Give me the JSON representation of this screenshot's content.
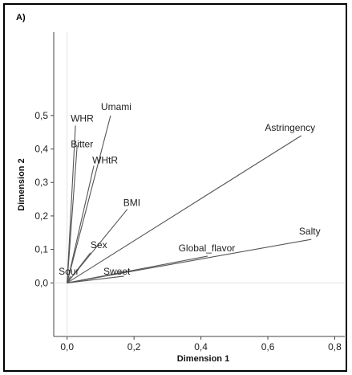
{
  "panel_label": "A)",
  "chart_data": {
    "type": "biplot-vectors",
    "xlabel": "Dimension 1",
    "ylabel": "Dimension 2",
    "xlim": [
      -0.04,
      0.83
    ],
    "ylim": [
      -0.16,
      0.55
    ],
    "xticks": [
      {
        "value": 0.0,
        "label": "0,0"
      },
      {
        "value": 0.2,
        "label": "0,2"
      },
      {
        "value": 0.4,
        "label": "0,4"
      },
      {
        "value": 0.6,
        "label": "0,6"
      },
      {
        "value": 0.8,
        "label": "0,8"
      }
    ],
    "yticks": [
      {
        "value": 0.0,
        "label": "0,0"
      },
      {
        "value": 0.1,
        "label": "0,1"
      },
      {
        "value": 0.2,
        "label": "0,2"
      },
      {
        "value": 0.3,
        "label": "0,3"
      },
      {
        "value": 0.4,
        "label": "0,4"
      },
      {
        "value": 0.5,
        "label": "0,5"
      }
    ],
    "vectors": [
      {
        "name": "WHR",
        "x": 0.025,
        "y": 0.47
      },
      {
        "name": "Umami",
        "x": 0.13,
        "y": 0.5
      },
      {
        "name": "Bitter",
        "x": 0.03,
        "y": 0.41
      },
      {
        "name": "WHtR",
        "x": 0.08,
        "y": 0.35
      },
      {
        "name": "BMI",
        "x": 0.18,
        "y": 0.22
      },
      {
        "name": "Astringency",
        "x": 0.7,
        "y": 0.44
      },
      {
        "name": "Salty",
        "x": 0.73,
        "y": 0.13
      },
      {
        "name": "Global_flavor",
        "x": 0.42,
        "y": 0.08
      },
      {
        "name": "Sweet",
        "x": 0.17,
        "y": 0.02
      },
      {
        "name": "Sex",
        "x": 0.07,
        "y": 0.09
      },
      {
        "name": "Sour",
        "x": 0.01,
        "y": 0.02
      }
    ]
  }
}
